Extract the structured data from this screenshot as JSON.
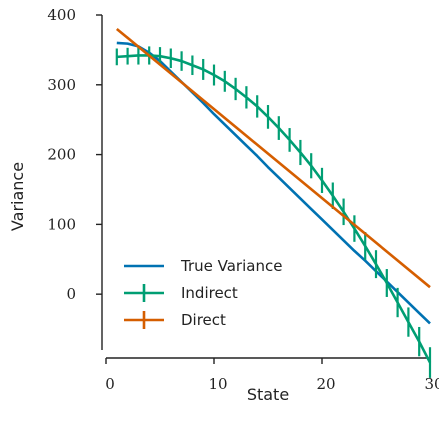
{
  "chart_data": {
    "type": "line",
    "title": "",
    "xlabel": "State",
    "ylabel": "Variance",
    "xlim": [
      0,
      30
    ],
    "ylim": [
      -80,
      400
    ],
    "xticks": [
      0,
      10,
      20,
      30
    ],
    "yticks": [
      0,
      100,
      200,
      300,
      400
    ],
    "xtick_labels": [
      "0",
      "10",
      "20",
      "30"
    ],
    "ytick_labels": [
      "0",
      "100",
      "200",
      "300",
      "400"
    ],
    "grid": false,
    "legend_position": "bottom-left",
    "series": [
      {
        "name": "True Variance",
        "color": "#0072B2",
        "x": [
          1,
          2,
          3,
          4,
          5,
          6,
          7,
          8,
          9,
          10,
          11,
          12,
          13,
          14,
          15,
          16,
          17,
          18,
          19,
          20,
          21,
          22,
          23,
          24,
          25,
          26,
          27,
          28,
          29,
          30
        ],
        "y": [
          360,
          359,
          355,
          346,
          334,
          319,
          304,
          289,
          274,
          258,
          243,
          228,
          213,
          198,
          182,
          167,
          152,
          137,
          122,
          107,
          92,
          77,
          62,
          48,
          33,
          18,
          3,
          -12,
          -27,
          -42
        ]
      },
      {
        "name": "Indirect",
        "color": "#009E73",
        "error_bars": true,
        "x": [
          1,
          2,
          3,
          4,
          5,
          6,
          7,
          8,
          9,
          10,
          11,
          12,
          13,
          14,
          15,
          16,
          17,
          18,
          19,
          20,
          21,
          22,
          23,
          24,
          25,
          26,
          27,
          28,
          29,
          30
        ],
        "y": [
          340,
          341,
          342,
          342,
          341,
          338,
          334,
          328,
          322,
          314,
          305,
          294,
          282,
          269,
          254,
          238,
          221,
          203,
          184,
          163,
          141,
          118,
          94,
          69,
          43,
          16,
          -12,
          -40,
          -68,
          -98
        ],
        "error": [
          12,
          12,
          13,
          13,
          13,
          14,
          14,
          14,
          15,
          15,
          15,
          16,
          16,
          16,
          17,
          17,
          17,
          18,
          18,
          18,
          19,
          19,
          19,
          20,
          20,
          20,
          21,
          21,
          21,
          22
        ]
      },
      {
        "name": "Direct",
        "color": "#D55E00",
        "error_bars": true,
        "x": [
          1,
          30
        ],
        "y": [
          380,
          10
        ],
        "error": [
          0,
          0
        ]
      }
    ]
  }
}
